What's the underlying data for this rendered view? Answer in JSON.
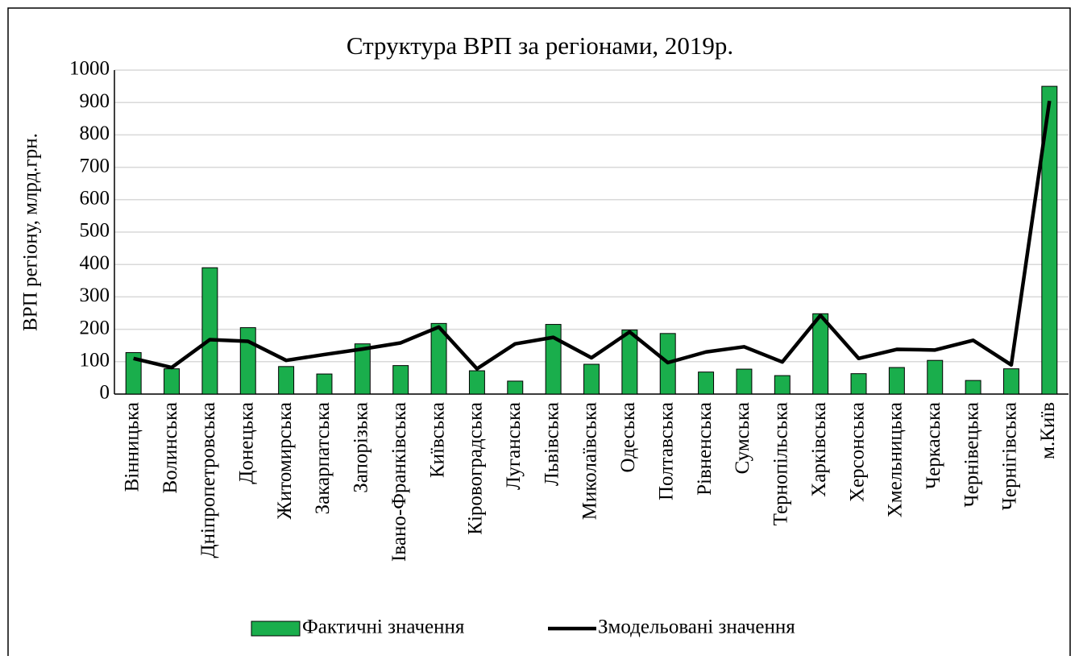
{
  "chart_data": {
    "type": "bar_line",
    "title": "Структура ВРП за регіонами, 2019р.",
    "y_label": "ВРП регіону, млрд.грн.",
    "categories": [
      "Вінницька",
      "Волинська",
      "Дніпропетровська",
      "Донецька",
      "Житомирська",
      "Закарпатська",
      "Запорізька",
      "Івано-Франківська",
      "Київська",
      "Кіровоградська",
      "Луганська",
      "Львівська",
      "Миколаївська",
      "Одеська",
      "Полтавська",
      "Рівненська",
      "Сумська",
      "Тернопільська",
      "Харківська",
      "Херсонська",
      "Хмельницька",
      "Черкаська",
      "Чернівецька",
      "Чернігівська",
      "м.Київ"
    ],
    "series": [
      {
        "name": "Фактичні значення",
        "kind": "bar",
        "color": "#1aae4c",
        "values": [
          128,
          78,
          390,
          205,
          85,
          62,
          155,
          88,
          218,
          72,
          40,
          215,
          92,
          198,
          187,
          68,
          77,
          57,
          248,
          63,
          82,
          104,
          42,
          78,
          950
        ]
      },
      {
        "name": "Змодельовані значення",
        "kind": "line",
        "color": "#000000",
        "values": [
          110,
          82,
          168,
          163,
          104,
          122,
          139,
          158,
          207,
          78,
          155,
          175,
          112,
          192,
          97,
          130,
          146,
          99,
          243,
          110,
          138,
          136,
          166,
          90,
          905
        ]
      }
    ],
    "ylim": [
      0,
      1000
    ],
    "yticks": [
      0,
      100,
      200,
      300,
      400,
      500,
      600,
      700,
      800,
      900,
      1000
    ],
    "grid": true,
    "legend": "bottom"
  }
}
